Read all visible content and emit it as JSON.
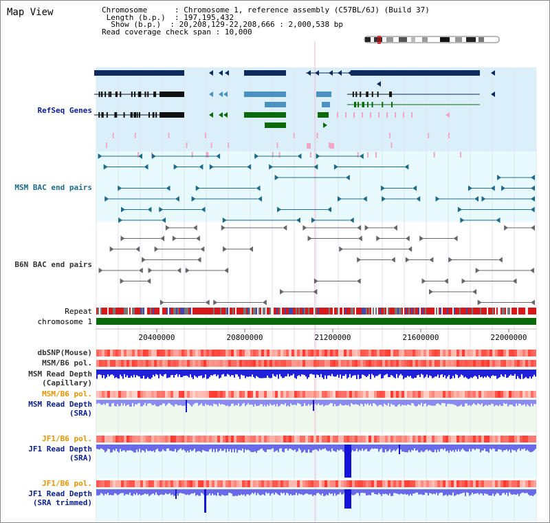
{
  "app": {
    "title": "Map View"
  },
  "info": {
    "chromosome_key": "Chromosome",
    "chromosome_val": "Chromosome 1, reference assembly (C57BL/6J) (Build 37)",
    "length_key": "Length (b.p.)",
    "length_val": "197,195,432",
    "show_key": "Show (b.p.)",
    "show_val": "20,208,129-22,208,666 : 2,000,538 bp",
    "read_key": "Read coverage check span",
    "read_val": "10,000"
  },
  "tracks": {
    "refseq": "RefSeq Genes",
    "msm_bac": "MSM BAC end pairs",
    "b6n_bac": "B6N BAC end pairs",
    "repeat": "Repeat",
    "chromosome": "chromosome 1",
    "dbsnp": "dbSNP(Mouse)",
    "msm_b6_pol": "MSM/B6 pol.",
    "msm_depth_cap_1": "MSM Read Depth",
    "msm_depth_cap_2": "(Capillary)",
    "msm_b6_pol_2": "MSM/B6 pol.",
    "msm_depth_sra_1": "MSM Read Depth",
    "msm_depth_sra_2": "(SRA)",
    "jf1_b6_pol": "JF1/B6 pol.",
    "jf1_depth_sra_1": "JF1 Read Depth",
    "jf1_depth_sra_2": "(SRA)",
    "jf1_b6_pol_2": "JF1/B6 pol.",
    "jf1_depth_trim_1": "JF1 Read Depth",
    "jf1_depth_trim_2": "(SRA trimmed)"
  },
  "ruler": {
    "ticks": [
      "20400000",
      "20800000",
      "21200000",
      "21600000",
      "22000000"
    ]
  },
  "colors": {
    "refseq_dark": "#0c2a5c",
    "refseq_mid": "#4a90c0",
    "refseq_green": "#0a6a0a",
    "msm_line": "#1c6a8a",
    "b6n_line": "#666666",
    "chrom_bar": "#0a6a0a",
    "track_bg_blue": "#dbeffa",
    "track_bg_cyan": "#e8fafc",
    "depth_blue": "#1414d8"
  }
}
